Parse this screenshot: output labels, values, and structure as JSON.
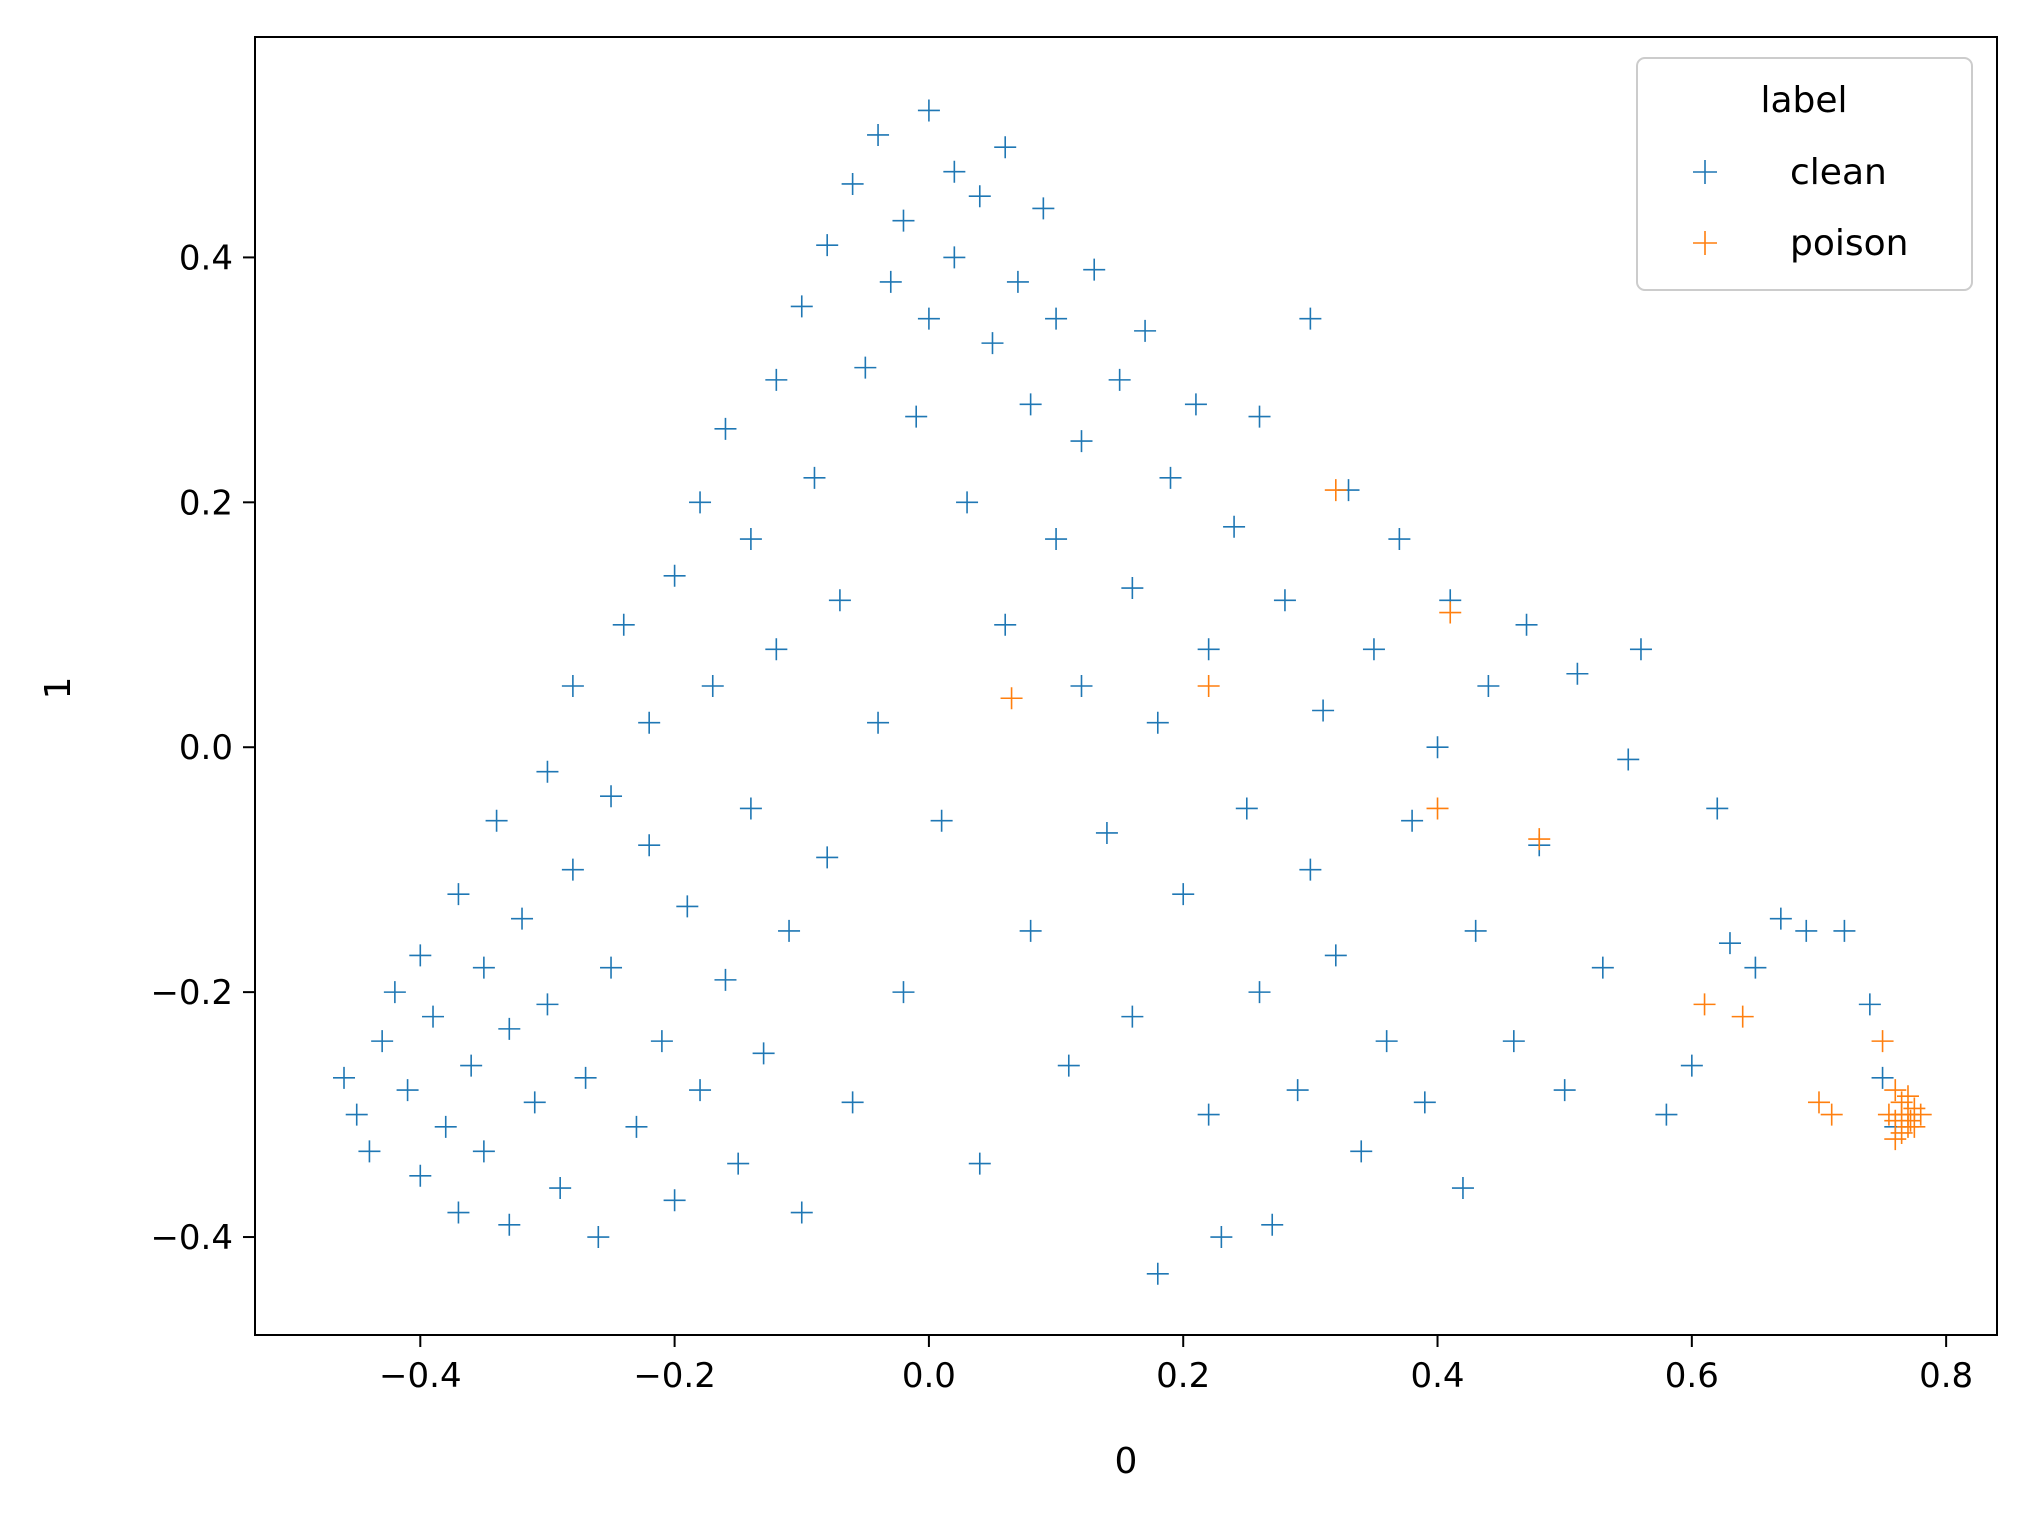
{
  "chart_data": {
    "type": "scatter",
    "title": "",
    "xlabel": "0",
    "ylabel": "1",
    "xlim": [
      -0.53,
      0.84
    ],
    "ylim": [
      -0.48,
      0.58
    ],
    "x_ticks": [
      {
        "value": -0.4,
        "label": "−0.4"
      },
      {
        "value": -0.2,
        "label": "−0.2"
      },
      {
        "value": 0.0,
        "label": "0.0"
      },
      {
        "value": 0.2,
        "label": "0.2"
      },
      {
        "value": 0.4,
        "label": "0.4"
      },
      {
        "value": 0.6,
        "label": "0.6"
      },
      {
        "value": 0.8,
        "label": "0.8"
      }
    ],
    "y_ticks": [
      {
        "value": -0.4,
        "label": "−0.4"
      },
      {
        "value": -0.2,
        "label": "−0.2"
      },
      {
        "value": 0.0,
        "label": "0.0"
      },
      {
        "value": 0.2,
        "label": "0.2"
      },
      {
        "value": 0.4,
        "label": "0.4"
      }
    ],
    "grid": false,
    "marker": "+",
    "legend": {
      "title": "label",
      "position": "top-right",
      "entries": [
        "clean",
        "poison"
      ]
    },
    "series": [
      {
        "name": "clean",
        "color": "#1f77b4",
        "points": [
          [
            -0.46,
            -0.27
          ],
          [
            -0.45,
            -0.3
          ],
          [
            -0.44,
            -0.33
          ],
          [
            -0.43,
            -0.24
          ],
          [
            -0.42,
            -0.2
          ],
          [
            -0.41,
            -0.28
          ],
          [
            -0.4,
            -0.35
          ],
          [
            -0.4,
            -0.17
          ],
          [
            -0.39,
            -0.22
          ],
          [
            -0.38,
            -0.31
          ],
          [
            -0.37,
            -0.38
          ],
          [
            -0.37,
            -0.12
          ],
          [
            -0.36,
            -0.26
          ],
          [
            -0.35,
            -0.18
          ],
          [
            -0.35,
            -0.33
          ],
          [
            -0.34,
            -0.06
          ],
          [
            -0.33,
            -0.23
          ],
          [
            -0.33,
            -0.39
          ],
          [
            -0.32,
            -0.14
          ],
          [
            -0.31,
            -0.29
          ],
          [
            -0.3,
            -0.02
          ],
          [
            -0.3,
            -0.21
          ],
          [
            -0.29,
            -0.36
          ],
          [
            -0.28,
            0.05
          ],
          [
            -0.28,
            -0.1
          ],
          [
            -0.27,
            -0.27
          ],
          [
            -0.26,
            -0.4
          ],
          [
            -0.25,
            -0.04
          ],
          [
            -0.25,
            -0.18
          ],
          [
            -0.24,
            0.1
          ],
          [
            -0.23,
            -0.31
          ],
          [
            -0.22,
            -0.08
          ],
          [
            -0.22,
            0.02
          ],
          [
            -0.21,
            -0.24
          ],
          [
            -0.2,
            -0.37
          ],
          [
            -0.2,
            0.14
          ],
          [
            -0.19,
            -0.13
          ],
          [
            -0.18,
            0.2
          ],
          [
            -0.18,
            -0.28
          ],
          [
            -0.17,
            0.05
          ],
          [
            -0.16,
            -0.19
          ],
          [
            -0.16,
            0.26
          ],
          [
            -0.15,
            -0.34
          ],
          [
            -0.14,
            -0.05
          ],
          [
            -0.14,
            0.17
          ],
          [
            -0.13,
            -0.25
          ],
          [
            -0.12,
            0.3
          ],
          [
            -0.12,
            0.08
          ],
          [
            -0.11,
            -0.15
          ],
          [
            -0.1,
            -0.38
          ],
          [
            -0.1,
            0.36
          ],
          [
            -0.09,
            0.22
          ],
          [
            -0.08,
            -0.09
          ],
          [
            -0.08,
            0.41
          ],
          [
            -0.07,
            0.12
          ],
          [
            -0.06,
            -0.29
          ],
          [
            -0.06,
            0.46
          ],
          [
            -0.05,
            0.31
          ],
          [
            -0.04,
            0.02
          ],
          [
            -0.04,
            0.5
          ],
          [
            -0.03,
            0.38
          ],
          [
            -0.02,
            -0.2
          ],
          [
            -0.02,
            0.43
          ],
          [
            -0.01,
            0.27
          ],
          [
            0.0,
            0.52
          ],
          [
            0.0,
            0.35
          ],
          [
            0.01,
            -0.06
          ],
          [
            0.02,
            0.47
          ],
          [
            0.02,
            0.4
          ],
          [
            0.03,
            0.2
          ],
          [
            0.04,
            0.45
          ],
          [
            0.04,
            -0.34
          ],
          [
            0.05,
            0.33
          ],
          [
            0.06,
            0.49
          ],
          [
            0.06,
            0.1
          ],
          [
            0.07,
            0.38
          ],
          [
            0.08,
            0.28
          ],
          [
            0.08,
            -0.15
          ],
          [
            0.09,
            0.44
          ],
          [
            0.1,
            0.17
          ],
          [
            0.1,
            0.35
          ],
          [
            0.11,
            -0.26
          ],
          [
            0.12,
            0.25
          ],
          [
            0.12,
            0.05
          ],
          [
            0.13,
            0.39
          ],
          [
            0.14,
            -0.07
          ],
          [
            0.15,
            0.3
          ],
          [
            0.16,
            0.13
          ],
          [
            0.16,
            -0.22
          ],
          [
            0.17,
            0.34
          ],
          [
            0.18,
            -0.43
          ],
          [
            0.18,
            0.02
          ],
          [
            0.19,
            0.22
          ],
          [
            0.2,
            -0.12
          ],
          [
            0.21,
            0.28
          ],
          [
            0.22,
            -0.3
          ],
          [
            0.22,
            0.08
          ],
          [
            0.23,
            -0.4
          ],
          [
            0.24,
            0.18
          ],
          [
            0.25,
            -0.05
          ],
          [
            0.26,
            0.27
          ],
          [
            0.26,
            -0.2
          ],
          [
            0.27,
            -0.39
          ],
          [
            0.28,
            0.12
          ],
          [
            0.29,
            -0.28
          ],
          [
            0.3,
            0.35
          ],
          [
            0.3,
            -0.1
          ],
          [
            0.31,
            0.03
          ],
          [
            0.32,
            -0.17
          ],
          [
            0.33,
            0.21
          ],
          [
            0.34,
            -0.33
          ],
          [
            0.35,
            0.08
          ],
          [
            0.36,
            -0.24
          ],
          [
            0.37,
            0.17
          ],
          [
            0.38,
            -0.06
          ],
          [
            0.39,
            -0.29
          ],
          [
            0.4,
            0.0
          ],
          [
            0.41,
            0.12
          ],
          [
            0.42,
            -0.36
          ],
          [
            0.43,
            -0.15
          ],
          [
            0.44,
            0.05
          ],
          [
            0.46,
            -0.24
          ],
          [
            0.47,
            0.1
          ],
          [
            0.48,
            -0.08
          ],
          [
            0.5,
            -0.28
          ],
          [
            0.51,
            0.06
          ],
          [
            0.53,
            -0.18
          ],
          [
            0.55,
            -0.01
          ],
          [
            0.56,
            0.08
          ],
          [
            0.58,
            -0.3
          ],
          [
            0.6,
            -0.26
          ],
          [
            0.62,
            -0.05
          ],
          [
            0.63,
            -0.16
          ],
          [
            0.65,
            -0.18
          ],
          [
            0.67,
            -0.14
          ],
          [
            0.69,
            -0.15
          ],
          [
            0.72,
            -0.15
          ],
          [
            0.74,
            -0.21
          ],
          [
            0.75,
            -0.27
          ],
          [
            0.76,
            -0.31
          ]
        ]
      },
      {
        "name": "poison",
        "color": "#ff7f0e",
        "points": [
          [
            0.32,
            0.21
          ],
          [
            0.41,
            0.11
          ],
          [
            0.22,
            0.05
          ],
          [
            0.065,
            0.04
          ],
          [
            0.4,
            -0.05
          ],
          [
            0.48,
            -0.075
          ],
          [
            0.61,
            -0.21
          ],
          [
            0.64,
            -0.22
          ],
          [
            0.7,
            -0.29
          ],
          [
            0.71,
            -0.3
          ],
          [
            0.75,
            -0.24
          ],
          [
            0.755,
            -0.3
          ],
          [
            0.76,
            -0.28
          ],
          [
            0.76,
            -0.32
          ],
          [
            0.765,
            -0.29
          ],
          [
            0.77,
            -0.31
          ],
          [
            0.77,
            -0.3
          ],
          [
            0.775,
            -0.295
          ],
          [
            0.78,
            -0.3
          ],
          [
            0.76,
            -0.305
          ],
          [
            0.765,
            -0.315
          ],
          [
            0.77,
            -0.285
          ],
          [
            0.775,
            -0.31
          ],
          [
            0.765,
            -0.3
          ],
          [
            0.772,
            -0.305
          ]
        ]
      }
    ]
  }
}
